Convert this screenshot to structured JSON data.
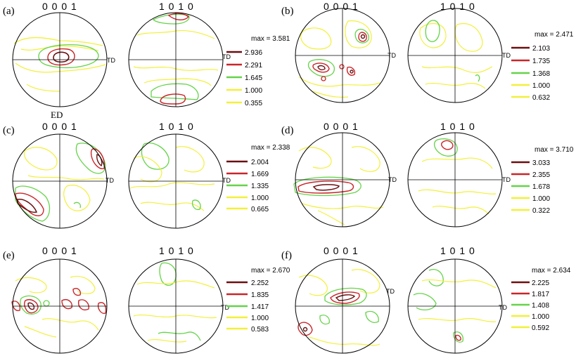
{
  "colors": {
    "darkred": "#6b0f10",
    "red": "#c9252a",
    "green": "#66d34a",
    "yellow": "#f2f03a",
    "axis": "#000000"
  },
  "td_label": "TD",
  "ed_label": "ED",
  "panels": [
    {
      "label": "(a)",
      "hdr_basal": "0 0 0 1",
      "hdr_prism": "1 0 1 0",
      "max": "max = 3.581",
      "levels": [
        "2.936",
        "2.291",
        "1.645",
        "1.000",
        "0.355"
      ]
    },
    {
      "label": "(b)",
      "hdr_basal": "0 0 0 1",
      "hdr_prism": "1 0 1 0",
      "max": "max = 2.471",
      "levels": [
        "2.103",
        "1.735",
        "1.368",
        "1.000",
        "0.632"
      ]
    },
    {
      "label": "(c)",
      "hdr_basal": "0 0 0 1",
      "hdr_prism": "1 0 1 0",
      "max": "max = 2.338",
      "levels": [
        "2.004",
        "1.669",
        "1.335",
        "1.000",
        "0.665"
      ]
    },
    {
      "label": "(d)",
      "hdr_basal": "0 0 0 1",
      "hdr_prism": "1 0 1 0",
      "max": "max = 3.710",
      "levels": [
        "3.033",
        "2.355",
        "1.678",
        "1.000",
        "0.322"
      ]
    },
    {
      "label": "(e)",
      "hdr_basal": "0 0 0 1",
      "hdr_prism": "1 0 1 0",
      "max": "max = 2.670",
      "levels": [
        "2.252",
        "1.835",
        "1.417",
        "1.000",
        "0.583"
      ]
    },
    {
      "label": "(f)",
      "hdr_basal": "0 0 0 1",
      "hdr_prism": "1 0 1 0",
      "max": "max = 2.634",
      "levels": [
        "2.225",
        "1.817",
        "1.408",
        "1.000",
        "0.592"
      ]
    }
  ]
}
